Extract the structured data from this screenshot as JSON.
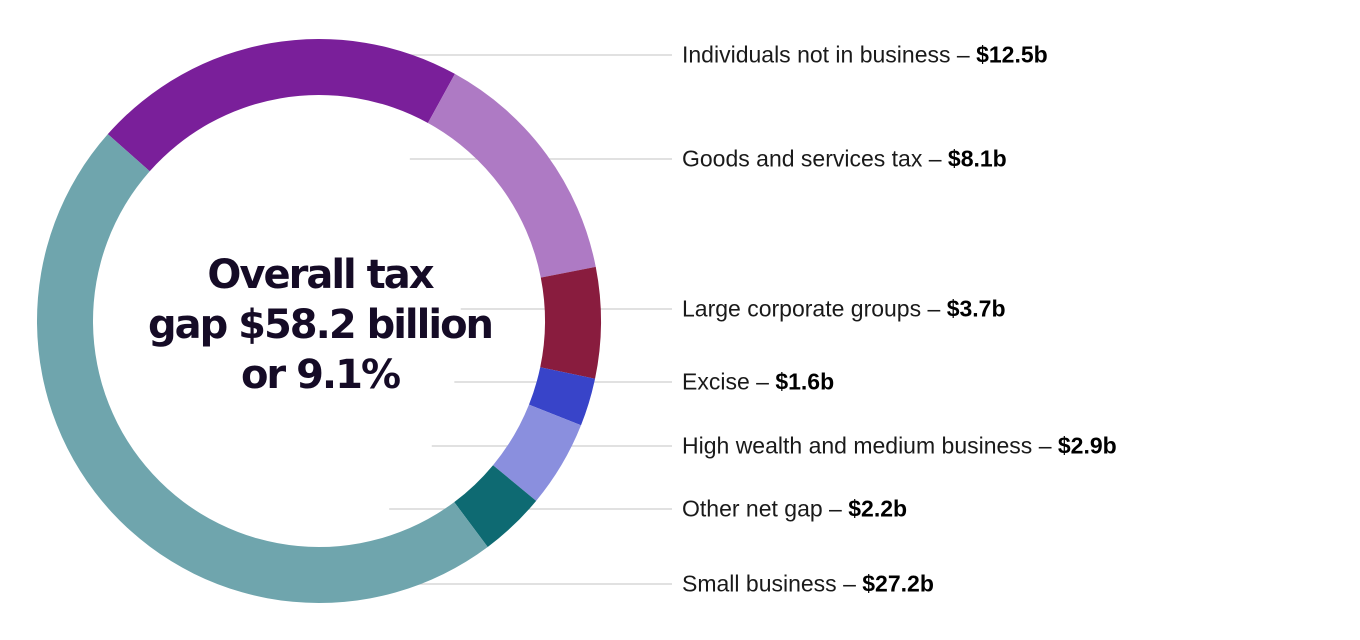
{
  "chart_data": {
    "type": "pie",
    "subtype": "donut",
    "title": "Overall tax gap $58.2 billion or 9.1%",
    "title_lines": [
      "Overall tax",
      "gap $58.2 billion",
      "or 9.1%"
    ],
    "unit": "$ billion",
    "total": 58.2,
    "legend_placement": "right",
    "series": [
      {
        "name": "Individuals not in business",
        "value": 12.5,
        "value_label": "$12.5b",
        "color": "#7a1f9a"
      },
      {
        "name": "Goods and services tax",
        "value": 8.1,
        "value_label": "$8.1b",
        "color": "#ae7ac4"
      },
      {
        "name": "Large corporate groups",
        "value": 3.7,
        "value_label": "$3.7b",
        "color": "#891c3e"
      },
      {
        "name": "Excise",
        "value": 1.6,
        "value_label": "$1.6b",
        "color": "#3844c9"
      },
      {
        "name": "High wealth and medium business",
        "value": 2.9,
        "value_label": "$2.9b",
        "color": "#8a8fde"
      },
      {
        "name": "Other net gap",
        "value": 2.2,
        "value_label": "$2.2b",
        "color": "#0e6a72"
      },
      {
        "name": "Small business",
        "value": 27.2,
        "value_label": "$27.2b",
        "color": "#6fa5ad"
      }
    ]
  },
  "separator": " – "
}
